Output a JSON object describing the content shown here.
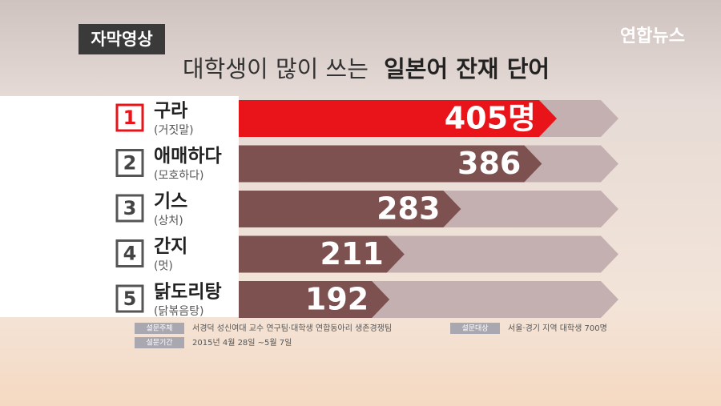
{
  "chart_data": {
    "type": "bar",
    "tag": "자막영상",
    "brand": "연합뉴스",
    "title": "대학생이 많이 쓰는",
    "title_emphasis": "일본어 잔재 단어",
    "ranks": [
      "1",
      "2",
      "3",
      "4",
      "5"
    ],
    "categories": [
      "구라",
      "애매하다",
      "기스",
      "간지",
      "닭도리탕"
    ],
    "meanings": [
      "(거짓말)",
      "(모호하다)",
      "(상처)",
      "(멋)",
      "(닭볶음탕)"
    ],
    "values": [
      405,
      386,
      283,
      211,
      192
    ],
    "value_labels": [
      "405명",
      "386",
      "283",
      "211",
      "192"
    ],
    "colors": [
      "#e8141a",
      "#7d5150",
      "#7d5150",
      "#7d5150",
      "#7d5150"
    ],
    "footer": [
      {
        "key": "설문주체",
        "text": "서경덕 성신여대 교수 연구팀·대학생 연합동아리 생존경쟁팀"
      },
      {
        "key": "설문대상",
        "text": "서울·경기 지역 대학생 700명"
      },
      {
        "key": "설문기간",
        "text": "2015년 4월 28일 ~5월 7일"
      }
    ]
  }
}
